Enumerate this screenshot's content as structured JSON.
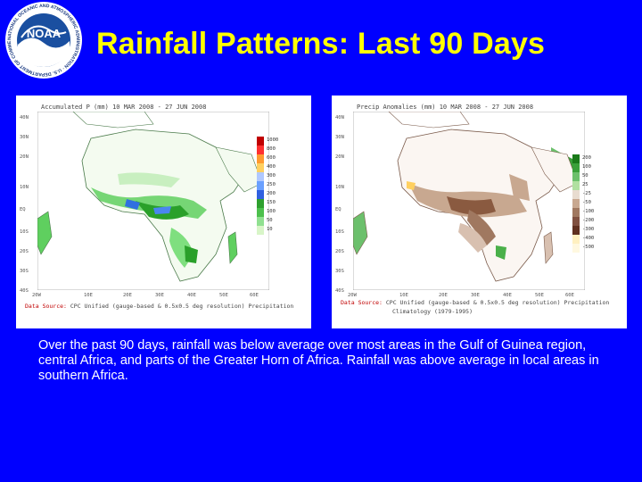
{
  "title": "Rainfall Patterns: Last 90 Days",
  "logo": {
    "text": "NATIONAL OCEANIC AND ATMOSPHERIC ADMINISTRATION · U.S. DEPARTMENT OF COMMERCE",
    "center": "NOAA"
  },
  "maps": [
    {
      "header": "Accumulated P (mm)  10 MAR 2008 - 27 JUN 2008",
      "source_label": "Data Source:",
      "source_text": "CPC Unified (gauge-based & 0.5x0.5 deg resolution) Precipitation",
      "lat_ticks": [
        "30N",
        "40N",
        "20N",
        "10N",
        "EQ",
        "10S",
        "20S",
        "30S",
        "40S"
      ],
      "lon_ticks": [
        "20W",
        "10E",
        "20E",
        "30E",
        "40E",
        "50E",
        "60E"
      ],
      "legend": [
        "1000",
        "800",
        "600",
        "400",
        "300",
        "250",
        "200",
        "150",
        "100",
        "50",
        "10"
      ],
      "legend_colors": [
        "#c00000",
        "#ff3030",
        "#ff9a30",
        "#ffd060",
        "#b0c8ff",
        "#6aa0ff",
        "#3060e0",
        "#2ea02e",
        "#4cc04c",
        "#90e090",
        "#d8f5c8"
      ]
    },
    {
      "header": "Precip Anomalies (mm)  10 MAR 2008 - 27 JUN 2008",
      "source_label": "Data Source:",
      "source_text": "CPC Unified (gauge-based & 0.5x0.5 deg resolution) Precipitation",
      "source_text2": "Climatology (1979-1995)",
      "lat_ticks": [
        "30N",
        "40N",
        "20N",
        "10N",
        "EQ",
        "10S",
        "20S",
        "30S",
        "40S"
      ],
      "lon_ticks": [
        "20W",
        "10E",
        "20E",
        "30E",
        "40E",
        "50E",
        "60E"
      ],
      "legend": [
        "200",
        "100",
        "50",
        "25",
        "-25",
        "-50",
        "-100",
        "-200",
        "-300",
        "-400",
        "-500"
      ],
      "legend_colors": [
        "#1a7a1a",
        "#3aa03a",
        "#6cc06c",
        "#b0e0a0",
        "#e8dcd0",
        "#c8a890",
        "#a07860",
        "#805040",
        "#603020",
        "#fff0c0",
        "#fff8e0"
      ]
    }
  ],
  "caption": "Over the past 90 days, rainfall was below average over most areas in the Gulf of Guinea region, central Africa, and parts of the Greater Horn of Africa. Rainfall was above average in local areas in southern Africa."
}
